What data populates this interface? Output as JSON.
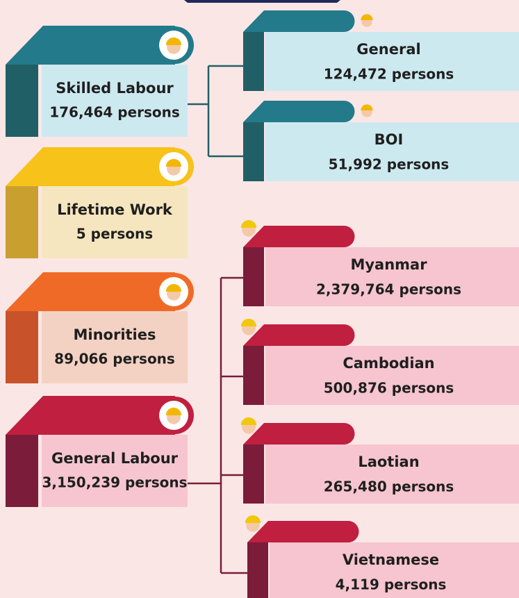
{
  "groups": [
    {
      "label": "Skilled Labour",
      "count": "176,464 persons",
      "children": [
        {
          "label": "General",
          "count": "124,472 persons"
        },
        {
          "label": "BOI",
          "count": "51,992 persons"
        }
      ]
    },
    {
      "label": "Lifetime Work",
      "count": "5 persons"
    },
    {
      "label": "Minorities",
      "count": "89,066 persons"
    },
    {
      "label": "General Labour",
      "count": "3,150,239 persons",
      "children": [
        {
          "label": "Myanmar",
          "count": "2,379,764 persons"
        },
        {
          "label": "Cambodian",
          "count": "500,876 persons"
        },
        {
          "label": "Laotian",
          "count": "265,480 persons"
        },
        {
          "label": "Vietnamese",
          "count": "4,119 persons"
        }
      ]
    }
  ]
}
